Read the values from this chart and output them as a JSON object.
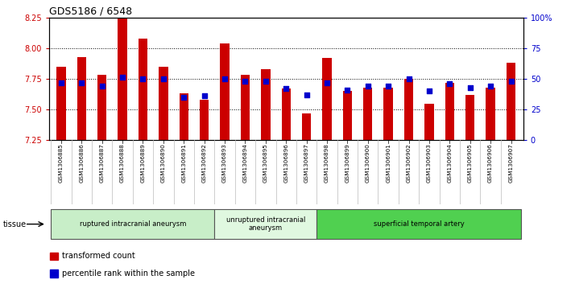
{
  "title": "GDS5186 / 6548",
  "samples": [
    "GSM1306885",
    "GSM1306886",
    "GSM1306887",
    "GSM1306888",
    "GSM1306889",
    "GSM1306890",
    "GSM1306891",
    "GSM1306892",
    "GSM1306893",
    "GSM1306894",
    "GSM1306895",
    "GSM1306896",
    "GSM1306897",
    "GSM1306898",
    "GSM1306899",
    "GSM1306900",
    "GSM1306901",
    "GSM1306902",
    "GSM1306903",
    "GSM1306904",
    "GSM1306905",
    "GSM1306906",
    "GSM1306907"
  ],
  "transformed_count": [
    7.85,
    7.93,
    7.78,
    8.25,
    8.08,
    7.85,
    7.63,
    7.58,
    8.04,
    7.78,
    7.83,
    7.67,
    7.47,
    7.92,
    7.65,
    7.68,
    7.68,
    7.75,
    7.55,
    7.72,
    7.62,
    7.68,
    7.88
  ],
  "percentile_rank": [
    47,
    47,
    44,
    51,
    50,
    50,
    35,
    36,
    50,
    48,
    48,
    42,
    37,
    47,
    41,
    44,
    44,
    50,
    40,
    46,
    43,
    44,
    48
  ],
  "groups": [
    {
      "label": "ruptured intracranial aneurysm",
      "start": 0,
      "end": 8,
      "color": "#c8eec8"
    },
    {
      "label": "unruptured intracranial\naneurysm",
      "start": 8,
      "end": 13,
      "color": "#e0f8e0"
    },
    {
      "label": "superficial temporal artery",
      "start": 13,
      "end": 23,
      "color": "#50d050"
    }
  ],
  "ylim_left": [
    7.25,
    8.25
  ],
  "ylim_right": [
    0,
    100
  ],
  "bar_color": "#cc0000",
  "dot_color": "#0000cc",
  "grid_color": "#000000",
  "xtick_bg": "#e8e8e8",
  "plot_bg": "#ffffff",
  "tick_color_left": "#cc0000",
  "tick_color_right": "#0000cc",
  "yticks_left": [
    7.25,
    7.5,
    7.75,
    8.0,
    8.25
  ],
  "yticks_right": [
    0,
    25,
    50,
    75,
    100
  ],
  "ytick_labels_right": [
    "0",
    "25",
    "50",
    "75",
    "100%"
  ],
  "legend_items": [
    {
      "label": "transformed count",
      "color": "#cc0000"
    },
    {
      "label": "percentile rank within the sample",
      "color": "#0000cc"
    }
  ],
  "tissue_label": "tissue",
  "bar_width": 0.45,
  "base_value": 7.25
}
